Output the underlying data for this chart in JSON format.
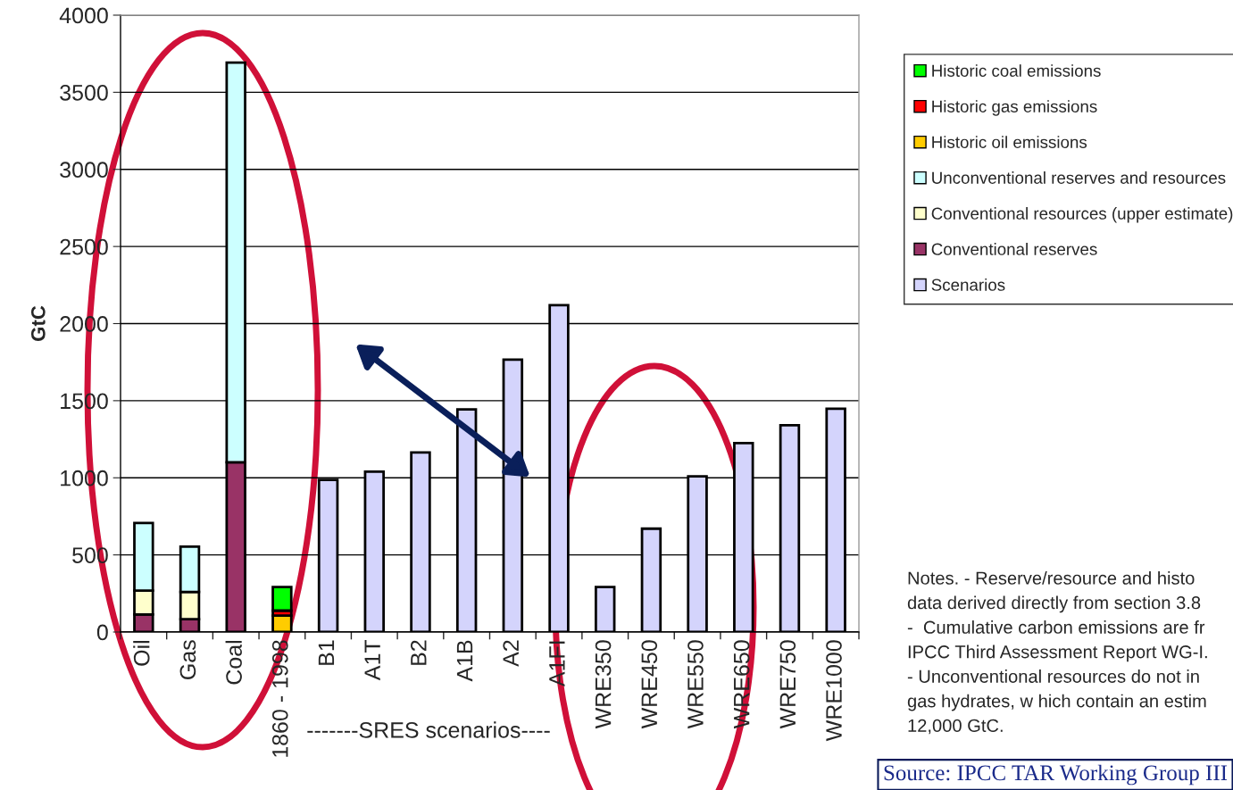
{
  "chart_data": {
    "type": "bar",
    "stacked": true,
    "ylabel": "GtC",
    "categories": [
      "Oil",
      "Gas",
      "Coal",
      "1860 - 1998",
      "B1",
      "A1T",
      "B2",
      "A1B",
      "A2",
      "A1FI",
      "WRE350",
      "WRE450",
      "WRE550",
      "WRE650",
      "WRE750",
      "WRE1000"
    ],
    "series": [
      {
        "name": "Conventional reserves",
        "color": "#993366",
        "values": [
          113,
          83,
          1100,
          null,
          null,
          null,
          null,
          null,
          null,
          null,
          null,
          null,
          null,
          null,
          null,
          null
        ]
      },
      {
        "name": "Conventional resources (upper estimate)",
        "color": "#ffffcc",
        "values": [
          155,
          177,
          null,
          null,
          null,
          null,
          null,
          null,
          null,
          null,
          null,
          null,
          null,
          null,
          null,
          null
        ]
      },
      {
        "name": "Unconventional reserves and resources",
        "color": "#ccffff",
        "values": [
          439,
          293,
          2593,
          null,
          null,
          null,
          null,
          null,
          null,
          null,
          null,
          null,
          null,
          null,
          null,
          null
        ]
      },
      {
        "name": "Historic oil emissions",
        "color": "#ffcc00",
        "values": [
          null,
          null,
          null,
          106,
          null,
          null,
          null,
          null,
          null,
          null,
          null,
          null,
          null,
          null,
          null,
          null
        ]
      },
      {
        "name": "Historic gas emissions",
        "color": "#ff0000",
        "values": [
          null,
          null,
          null,
          33,
          null,
          null,
          null,
          null,
          null,
          null,
          null,
          null,
          null,
          null,
          null,
          null
        ]
      },
      {
        "name": "Historic coal emissions",
        "color": "#00ff00",
        "values": [
          null,
          null,
          null,
          153,
          null,
          null,
          null,
          null,
          null,
          null,
          null,
          null,
          null,
          null,
          null,
          null
        ]
      },
      {
        "name": "Scenarios",
        "color": "#d4d4fc",
        "values": [
          null,
          null,
          null,
          null,
          986,
          1040,
          1164,
          1443,
          1766,
          2119,
          292,
          670,
          1009,
          1225,
          1341,
          1448
        ]
      }
    ],
    "ylim": [
      0,
      4000
    ],
    "yticks": [
      0,
      500,
      1000,
      1500,
      2000,
      2500,
      3000,
      3500,
      4000
    ],
    "grid": "y",
    "legend": "right",
    "annotations": [
      "-------SRES scenarios----",
      "Notes. - Reserve/resource and histo\ndata derived directly from section 3.8\n-  Cumulative carbon emissions are fr\nIPCC Third Assessment Report WG-I.\n- Unconventional resources do not in\ngas hydrates, w hich contain an estim\n12,000 GtC.",
      "Source: IPCC TAR Working Group III"
    ]
  }
}
